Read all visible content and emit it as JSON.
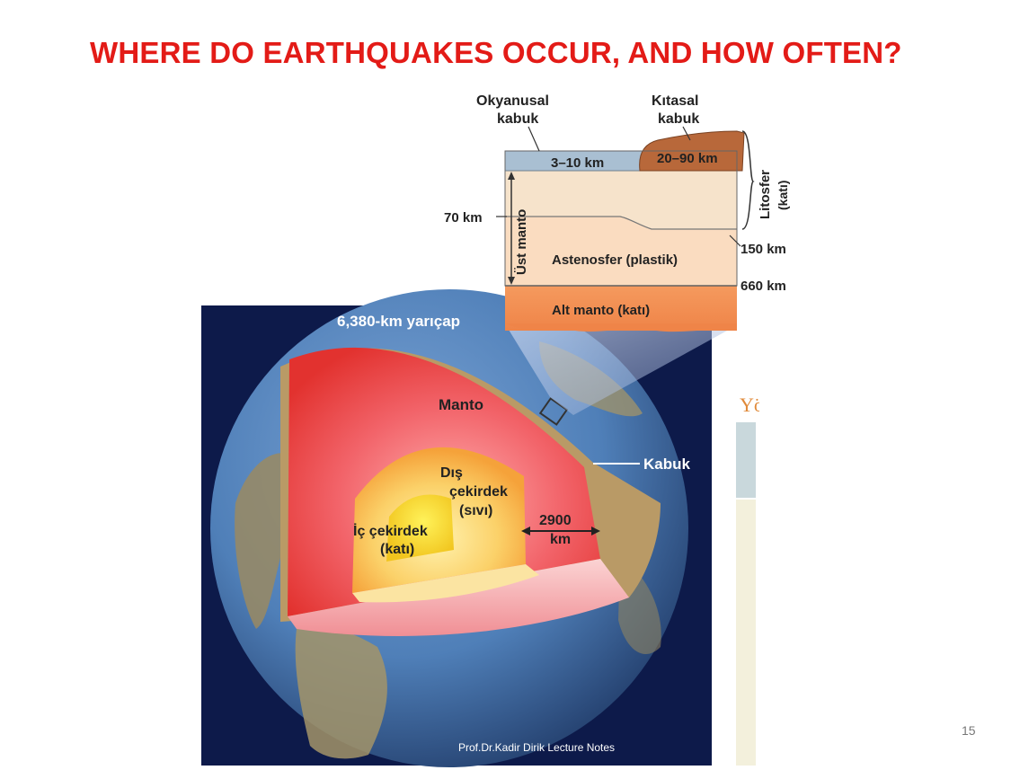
{
  "slide": {
    "title": "WHERE DO EARTHQUAKES OCCUR, AND HOW OFTEN?",
    "page_number": "15",
    "credit": "Prof.Dr.Kadir Dirik Lecture Notes",
    "side_panel_text": "Yö"
  },
  "cross_section": {
    "oceanic_crust_label_1": "Okyanusal",
    "oceanic_crust_label_2": "kabuk",
    "continental_crust_label_1": "Kıtasal",
    "continental_crust_label_2": "kabuk",
    "oceanic_thickness": "3–10 km",
    "continental_thickness": "20–90 km",
    "lithosphere_label": "Litosfer",
    "lithosphere_state": "(katı)",
    "depth_70": "70 km",
    "upper_mantle_label": "Üst manto",
    "depth_150": "150 km",
    "asthenosphere_label": "Astenosfer (plastik)",
    "depth_660": "660 km",
    "lower_mantle_label": "Alt manto (katı)"
  },
  "globe": {
    "radius_label": "6,380-km yarıçap",
    "mantle_label": "Manto",
    "crust_label": "Kabuk",
    "outer_core_label_1": "Dış",
    "outer_core_label_2": "çekirdek",
    "outer_core_state": "(sıvı)",
    "inner_core_label_1": "İç çekirdek",
    "inner_core_state": "(katı)",
    "core_depth_1": "2900",
    "core_depth_2": "km"
  },
  "colors": {
    "title": "#e31b17",
    "space_background": "#0d1a4a",
    "ocean": "#4f7fb8",
    "mantle": "#ef3a3a",
    "outer_core": "#f8c040",
    "inner_core": "#f4e23a",
    "oceanic_crust": "#a9bfd2",
    "continental_crust": "#b8683a",
    "lithosphere_mantle": "#f6e3cb",
    "asthenosphere": "#fadcc0",
    "lower_mantle": "#f39052"
  }
}
